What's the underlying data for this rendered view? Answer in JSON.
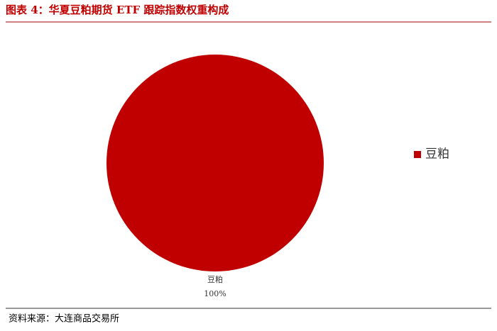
{
  "chart_data": {
    "type": "pie",
    "title": "图表 4：华夏豆粕期货 ETF 跟踪指数权重构成",
    "categories": [
      "豆粕"
    ],
    "values": [
      100
    ],
    "value_labels": [
      "100%"
    ],
    "colors": [
      "#c00000"
    ],
    "legend": "right"
  },
  "source": "资料来源：大连商品交易所"
}
